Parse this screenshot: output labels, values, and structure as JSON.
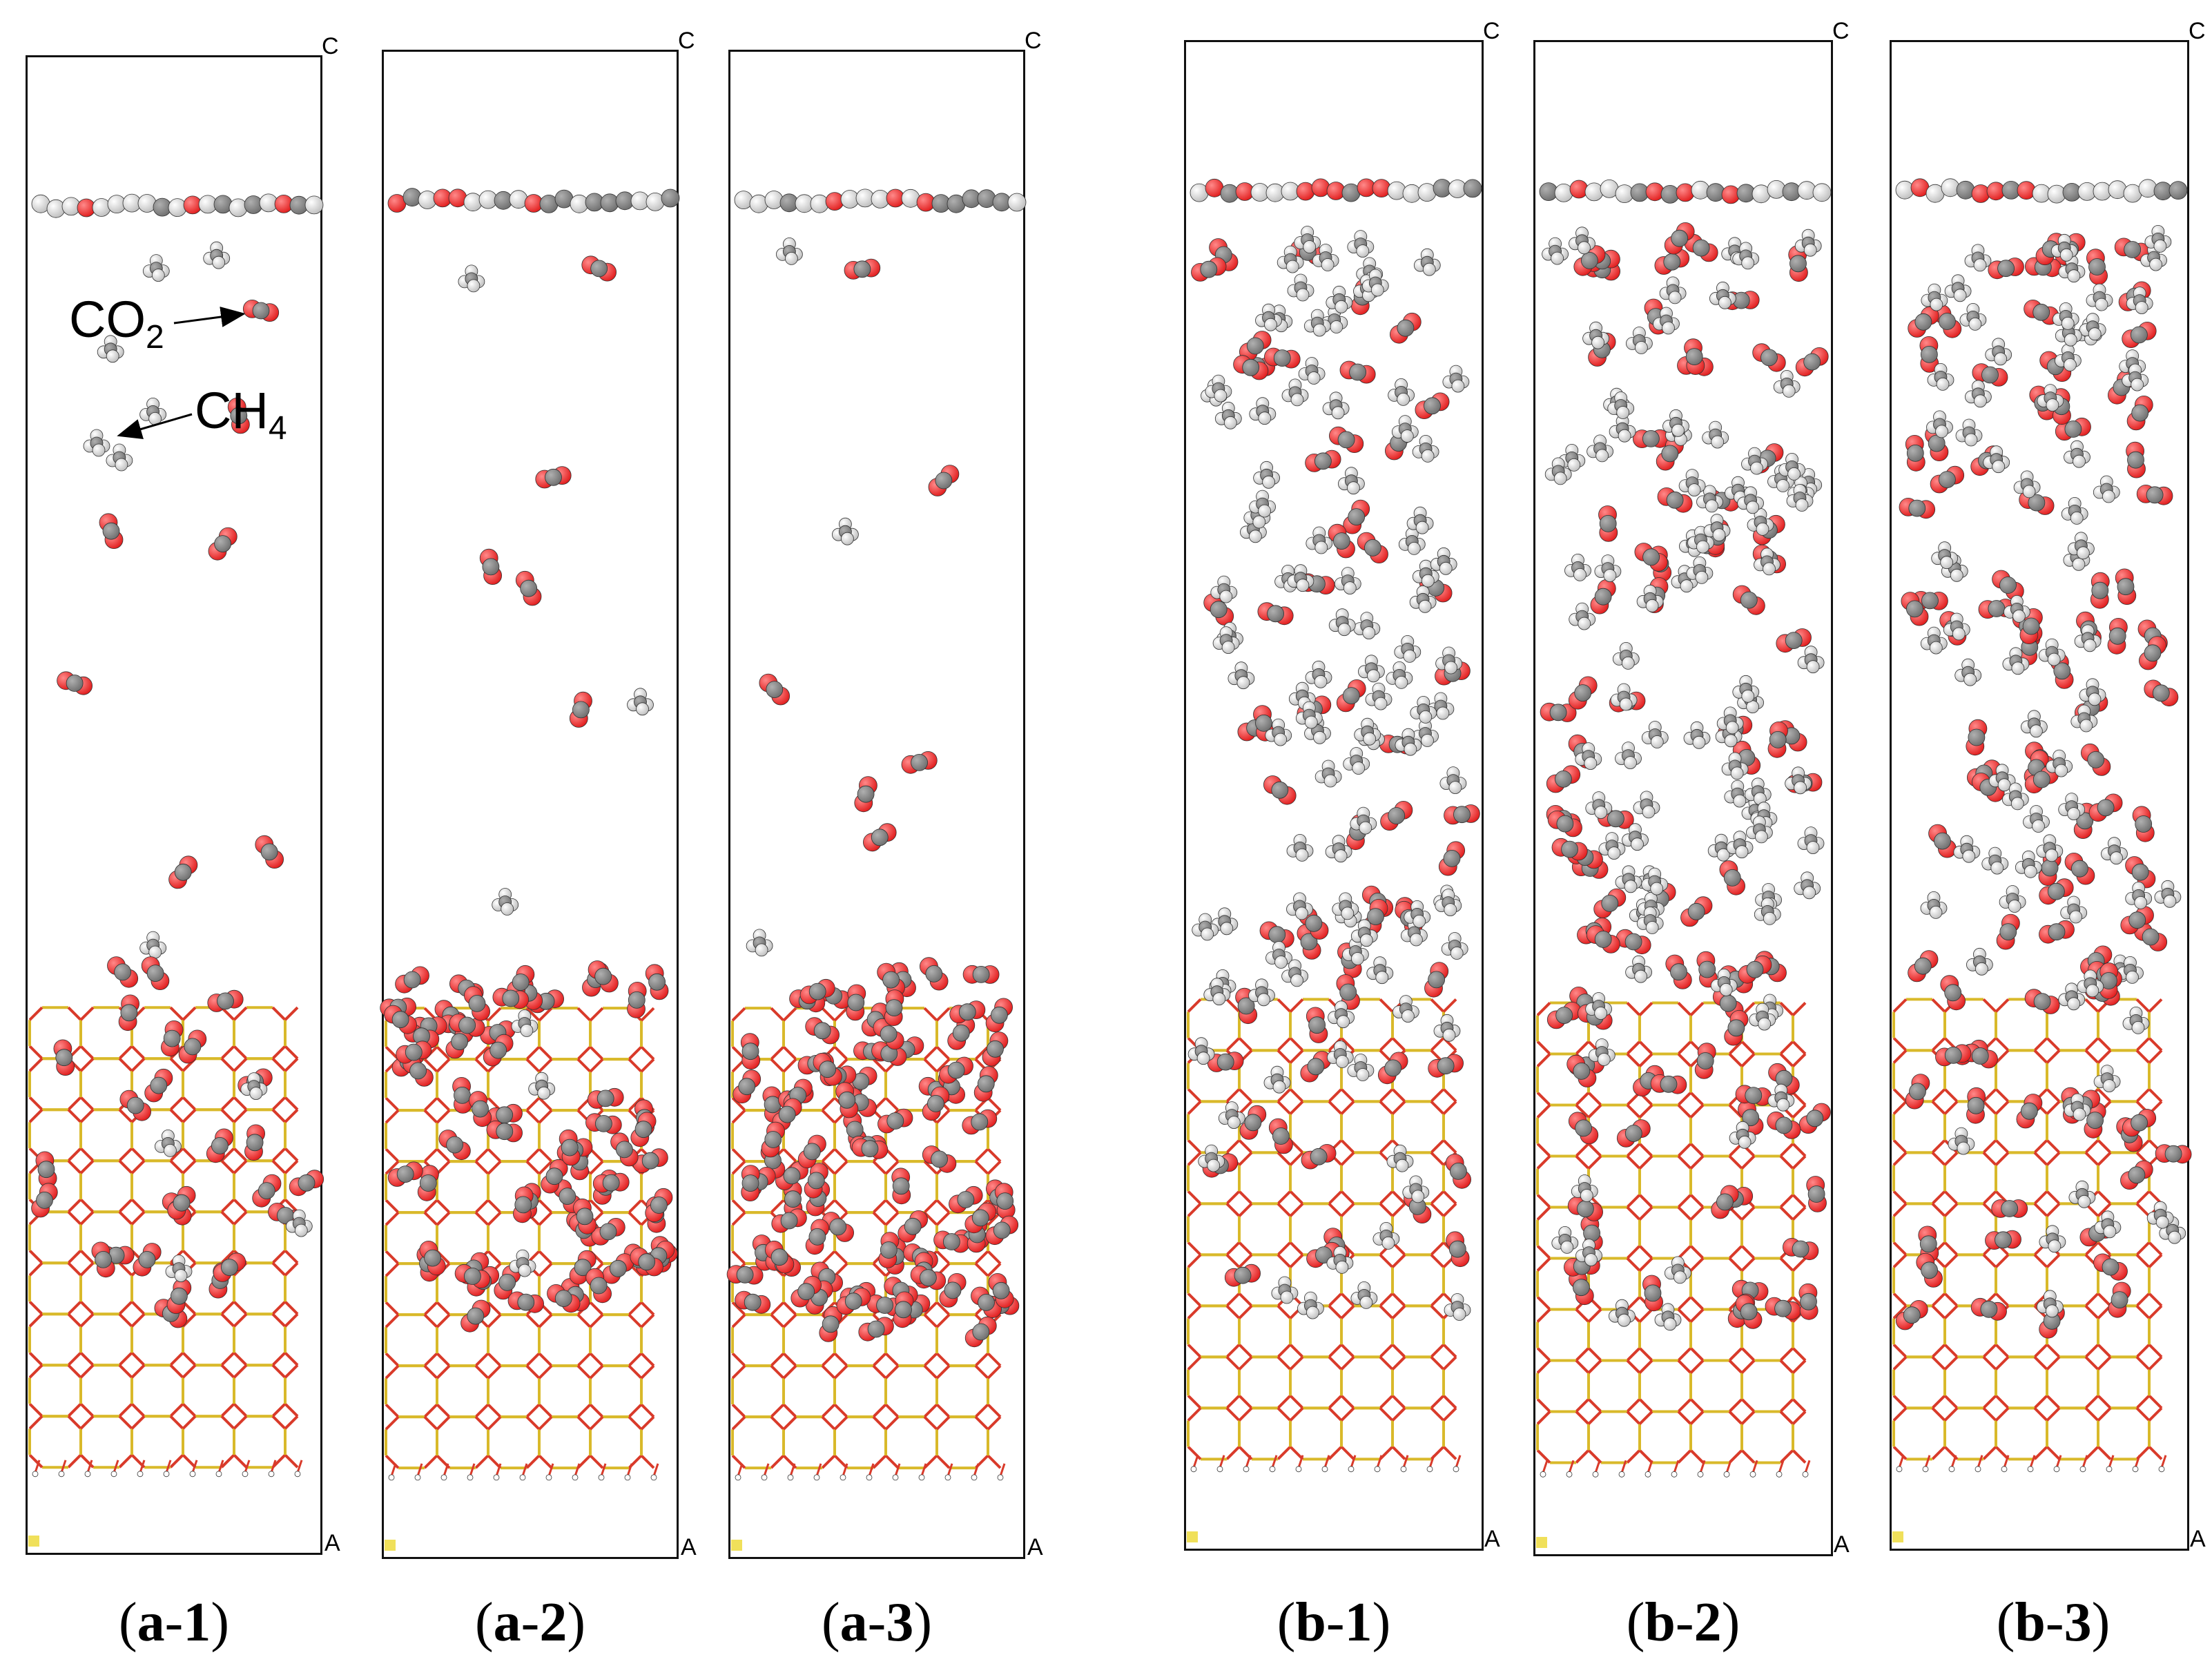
{
  "panels": [
    {
      "id": "a-1",
      "letter": "a",
      "num": "1",
      "axis_c": "C",
      "axis_a": "A",
      "co2_gas": 6,
      "ch4_gas": 6,
      "co2_zeo": 26,
      "ch4_zeo": 4
    },
    {
      "id": "a-2",
      "letter": "a",
      "num": "2",
      "axis_c": "C",
      "axis_a": "A",
      "co2_gas": 5,
      "ch4_gas": 3,
      "co2_zeo": 70,
      "ch4_zeo": 3
    },
    {
      "id": "a-3",
      "letter": "a",
      "num": "3",
      "axis_c": "C",
      "axis_a": "A",
      "co2_gas": 6,
      "ch4_gas": 3,
      "co2_zeo": 90,
      "ch4_zeo": 0
    },
    {
      "id": "b-1",
      "letter": "b",
      "num": "1",
      "axis_c": "C",
      "axis_a": "A",
      "co2_gas": 40,
      "ch4_gas": 80,
      "co2_zeo": 18,
      "ch4_zeo": 22
    },
    {
      "id": "b-2",
      "letter": "b",
      "num": "2",
      "axis_c": "C",
      "axis_a": "A",
      "co2_gas": 55,
      "ch4_gas": 75,
      "co2_zeo": 34,
      "ch4_zeo": 14
    },
    {
      "id": "b-3",
      "letter": "b",
      "num": "3",
      "axis_c": "C",
      "axis_a": "A",
      "co2_gas": 65,
      "ch4_gas": 60,
      "co2_zeo": 28,
      "ch4_zeo": 12
    }
  ],
  "annotations": {
    "co2": {
      "base": "CO",
      "sub": "2"
    },
    "ch4": {
      "base": "CH",
      "sub": "4"
    }
  },
  "colors": {
    "oxygen": "#e01b1b",
    "carbon": "#6e6e6e",
    "hydrogen": "#f2f2f2",
    "framework_o": "#d93a2a",
    "framework_si": "#d9b92a",
    "box": "#111111",
    "axis_c": "#35d435",
    "axis_a": "#e05050",
    "origin": "#f0e05a"
  }
}
